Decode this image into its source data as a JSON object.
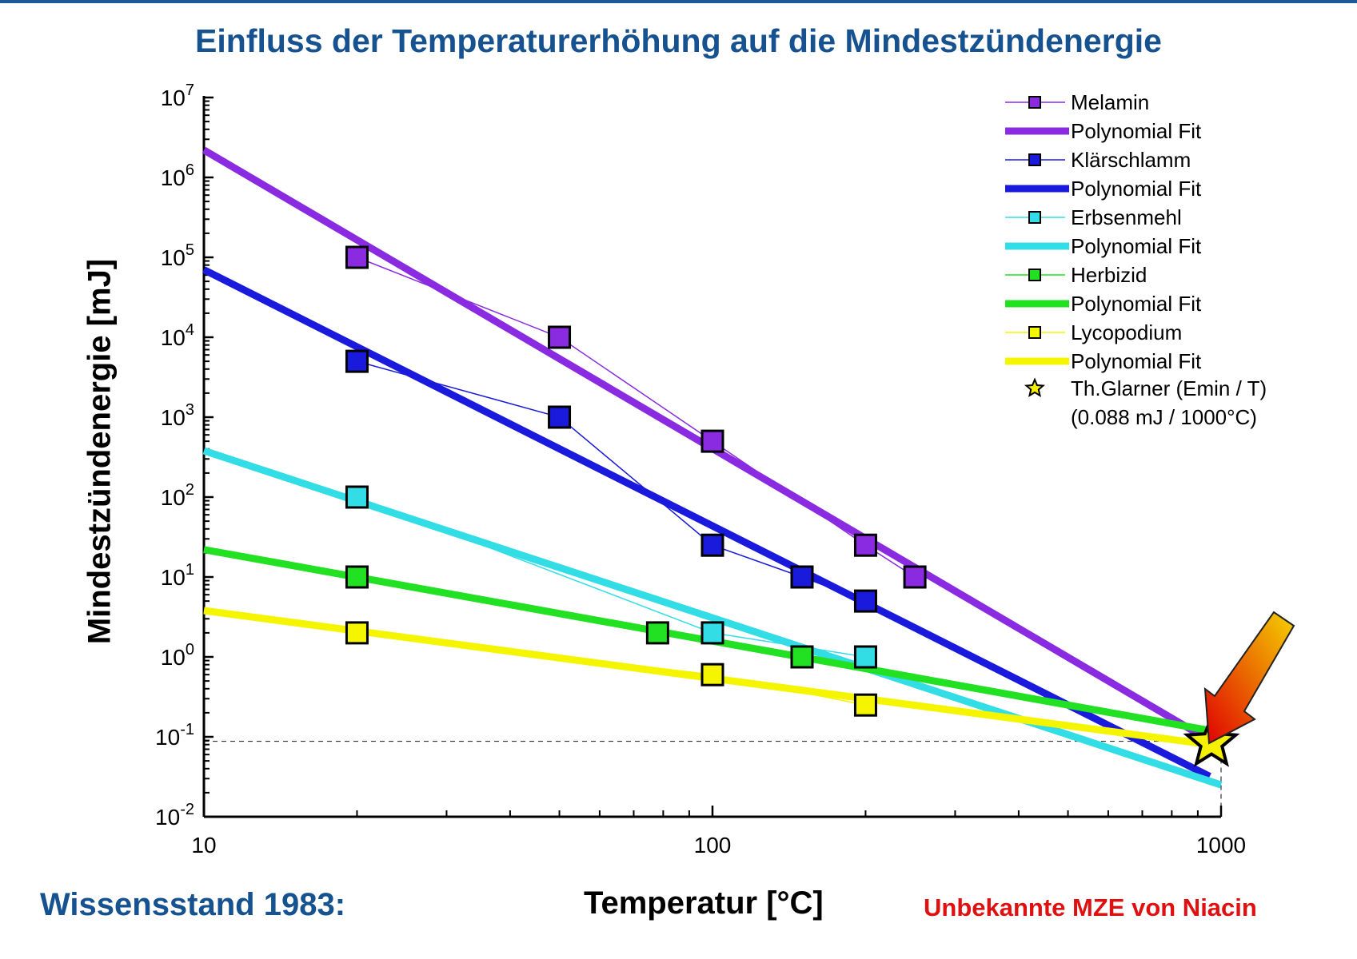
{
  "title": "Einfluss der Temperaturerhöhung auf die Mindestzündenergie",
  "footer": {
    "left": "Wissensstand 1983:",
    "right": "Unbekannte MZE von Niacin"
  },
  "chart_data": {
    "type": "scatter",
    "xlabel": "Temperatur [°C]",
    "ylabel": "Mindestzündenergie [mJ]",
    "xscale": "log",
    "yscale": "log",
    "xlim": [
      10,
      1000
    ],
    "ylim": [
      0.01,
      10000000
    ],
    "x_ticks": [
      "10",
      "100",
      "1000"
    ],
    "y_tick_exponents": [
      "7",
      "6",
      "5",
      "4",
      "3",
      "2",
      "1",
      "0",
      "-1",
      "-2"
    ],
    "y_tick_base": "10",
    "legend_position": "top-right",
    "series": [
      {
        "name": "Melamin",
        "color": "#8a2be2",
        "points": [
          [
            20,
            100000
          ],
          [
            50,
            10000
          ],
          [
            100,
            500
          ],
          [
            200,
            25
          ],
          [
            250,
            10
          ]
        ],
        "fit_name": "Polynomial Fit",
        "fit": [
          [
            10,
            2200000
          ],
          [
            950,
            0.09
          ]
        ]
      },
      {
        "name": "Klärschlamm",
        "color": "#1a1adc",
        "points": [
          [
            20,
            5000
          ],
          [
            50,
            1000
          ],
          [
            100,
            25
          ],
          [
            150,
            10
          ],
          [
            200,
            5
          ]
        ],
        "fit_name": "Polynomial Fit",
        "fit": [
          [
            10,
            70000
          ],
          [
            950,
            0.032
          ]
        ]
      },
      {
        "name": "Erbsenmehl",
        "color": "#33dde6",
        "points": [
          [
            20,
            100
          ],
          [
            100,
            2
          ],
          [
            200,
            1
          ]
        ],
        "fit_name": "Polynomial Fit",
        "fit": [
          [
            10,
            380
          ],
          [
            1000,
            0.025
          ]
        ]
      },
      {
        "name": "Herbizid",
        "color": "#22e022",
        "points": [
          [
            20,
            10
          ],
          [
            78,
            2
          ],
          [
            150,
            1
          ]
        ],
        "fit_name": "Polynomial Fit",
        "fit": [
          [
            10,
            22
          ],
          [
            950,
            0.12
          ]
        ]
      },
      {
        "name": "Lycopodium",
        "color": "#f5f500",
        "points": [
          [
            20,
            2
          ],
          [
            100,
            0.6
          ],
          [
            200,
            0.25
          ]
        ],
        "fit_name": "Polynomial Fit",
        "fit": [
          [
            10,
            3.8
          ],
          [
            950,
            0.08
          ]
        ]
      }
    ],
    "reference": {
      "name": "Th.Glarner (Emin / T)",
      "sub": "(0.088 mJ / 1000°C)",
      "x": 1000,
      "y": 0.088,
      "color": "#f5f000"
    }
  }
}
